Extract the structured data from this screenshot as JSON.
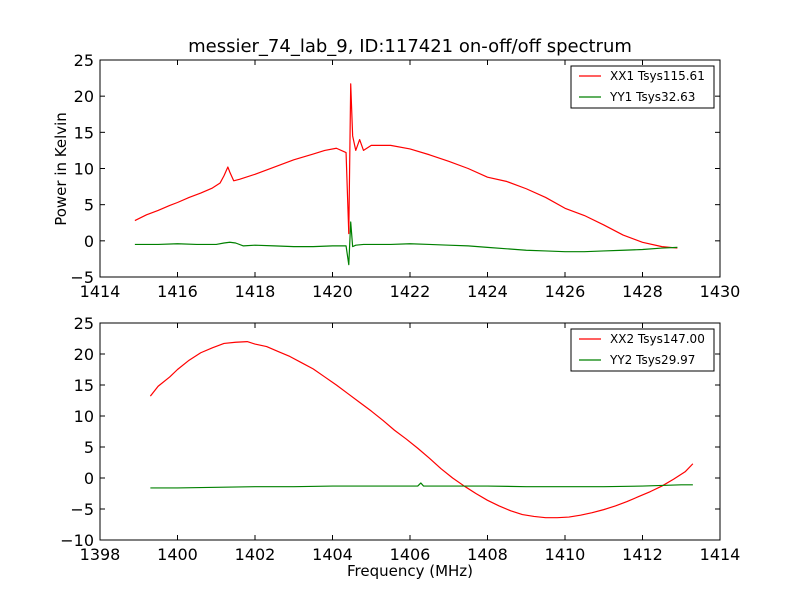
{
  "figure": {
    "title": "messier_74_lab_9, ID:117421 on-off/off spectrum",
    "xlabel": "Frequency (MHz)",
    "ylabel": "Power in Kelvin"
  },
  "chart_data": [
    {
      "type": "line",
      "title": "messier_74_lab_9, ID:117421 on-off/off spectrum",
      "xlabel": "",
      "ylabel": "Power in Kelvin",
      "xlim": [
        1414,
        1430
      ],
      "ylim": [
        -5,
        25
      ],
      "xticks": [
        1414,
        1416,
        1418,
        1420,
        1422,
        1424,
        1426,
        1428,
        1430
      ],
      "yticks": [
        -5,
        0,
        5,
        10,
        15,
        20,
        25
      ],
      "legend": "top-right",
      "grid": false,
      "series": [
        {
          "name": "XX1 Tsys115.61",
          "color": "#ff0000",
          "x": [
            1414.9,
            1415.2,
            1415.5,
            1415.8,
            1416.0,
            1416.3,
            1416.6,
            1416.9,
            1417.1,
            1417.2,
            1417.3,
            1417.35,
            1417.45,
            1417.6,
            1418.0,
            1418.5,
            1419.0,
            1419.5,
            1419.8,
            1420.1,
            1420.35,
            1420.42,
            1420.47,
            1420.52,
            1420.6,
            1420.7,
            1420.8,
            1421.0,
            1421.5,
            1422.0,
            1422.5,
            1423.0,
            1423.5,
            1424.0,
            1424.5,
            1425.0,
            1425.5,
            1426.0,
            1426.5,
            1427.0,
            1427.5,
            1428.0,
            1428.5,
            1428.9
          ],
          "y": [
            2.8,
            3.6,
            4.2,
            4.9,
            5.3,
            6.0,
            6.6,
            7.3,
            8.0,
            9.0,
            10.2,
            9.5,
            8.3,
            8.5,
            9.2,
            10.2,
            11.2,
            12.0,
            12.5,
            12.8,
            12.2,
            1.0,
            21.7,
            14.5,
            12.5,
            14.0,
            12.5,
            13.2,
            13.2,
            12.7,
            11.9,
            11.0,
            10.0,
            8.8,
            8.2,
            7.2,
            6.0,
            4.5,
            3.5,
            2.2,
            0.8,
            -0.2,
            -0.8,
            -1.0
          ]
        },
        {
          "name": "YY1 Tsys32.63",
          "color": "#008000",
          "x": [
            1414.9,
            1415.5,
            1416.0,
            1416.5,
            1417.0,
            1417.2,
            1417.35,
            1417.5,
            1417.7,
            1418.0,
            1418.5,
            1419.0,
            1419.5,
            1420.0,
            1420.35,
            1420.42,
            1420.47,
            1420.52,
            1420.6,
            1420.8,
            1421.0,
            1421.5,
            1422.0,
            1422.5,
            1423.0,
            1423.5,
            1424.0,
            1424.5,
            1425.0,
            1425.5,
            1426.0,
            1426.5,
            1427.0,
            1427.5,
            1428.0,
            1428.5,
            1428.9
          ],
          "y": [
            -0.5,
            -0.5,
            -0.4,
            -0.5,
            -0.5,
            -0.3,
            -0.2,
            -0.3,
            -0.7,
            -0.6,
            -0.7,
            -0.8,
            -0.8,
            -0.7,
            -0.7,
            -3.3,
            2.6,
            -0.8,
            -0.6,
            -0.5,
            -0.5,
            -0.5,
            -0.4,
            -0.5,
            -0.6,
            -0.7,
            -0.9,
            -1.1,
            -1.3,
            -1.4,
            -1.5,
            -1.5,
            -1.4,
            -1.3,
            -1.2,
            -1.0,
            -0.9
          ]
        }
      ]
    },
    {
      "type": "line",
      "title": "",
      "xlabel": "Frequency (MHz)",
      "ylabel": "",
      "xlim": [
        1398,
        1414
      ],
      "ylim": [
        -10,
        25
      ],
      "xticks": [
        1398,
        1400,
        1402,
        1404,
        1406,
        1408,
        1410,
        1412,
        1414
      ],
      "yticks": [
        -10,
        -5,
        0,
        5,
        10,
        15,
        20,
        25
      ],
      "legend": "top-right",
      "grid": false,
      "series": [
        {
          "name": "XX2 Tsys147.00",
          "color": "#ff0000",
          "x": [
            1399.3,
            1399.5,
            1399.8,
            1400.0,
            1400.3,
            1400.6,
            1400.9,
            1401.2,
            1401.5,
            1401.8,
            1402.0,
            1402.3,
            1402.6,
            1402.9,
            1403.2,
            1403.5,
            1403.8,
            1404.1,
            1404.4,
            1404.7,
            1405.0,
            1405.3,
            1405.6,
            1405.9,
            1406.2,
            1406.5,
            1406.8,
            1407.1,
            1407.4,
            1407.7,
            1408.0,
            1408.3,
            1408.6,
            1408.9,
            1409.2,
            1409.5,
            1409.8,
            1410.1,
            1410.4,
            1410.7,
            1411.0,
            1411.3,
            1411.6,
            1411.9,
            1412.2,
            1412.5,
            1412.8,
            1413.1,
            1413.3
          ],
          "y": [
            13.2,
            14.8,
            16.3,
            17.5,
            19.0,
            20.2,
            21.0,
            21.7,
            21.9,
            22.0,
            21.6,
            21.2,
            20.4,
            19.6,
            18.6,
            17.6,
            16.3,
            15.0,
            13.6,
            12.2,
            10.8,
            9.3,
            7.7,
            6.3,
            4.8,
            3.2,
            1.5,
            0.0,
            -1.3,
            -2.5,
            -3.6,
            -4.5,
            -5.3,
            -5.9,
            -6.2,
            -6.4,
            -6.4,
            -6.3,
            -6.0,
            -5.6,
            -5.1,
            -4.5,
            -3.8,
            -3.0,
            -2.2,
            -1.3,
            -0.2,
            1.0,
            2.3
          ]
        },
        {
          "name": "YY2 Tsys29.97",
          "color": "#008000",
          "x": [
            1399.3,
            1400.0,
            1401.0,
            1402.0,
            1403.0,
            1404.0,
            1405.0,
            1406.0,
            1406.2,
            1406.28,
            1406.35,
            1406.5,
            1407.0,
            1408.0,
            1409.0,
            1410.0,
            1411.0,
            1412.0,
            1412.5,
            1413.0,
            1413.3
          ],
          "y": [
            -1.6,
            -1.6,
            -1.5,
            -1.4,
            -1.4,
            -1.3,
            -1.3,
            -1.3,
            -1.3,
            -0.8,
            -1.3,
            -1.3,
            -1.3,
            -1.3,
            -1.4,
            -1.4,
            -1.4,
            -1.3,
            -1.2,
            -1.1,
            -1.1
          ]
        }
      ]
    }
  ]
}
